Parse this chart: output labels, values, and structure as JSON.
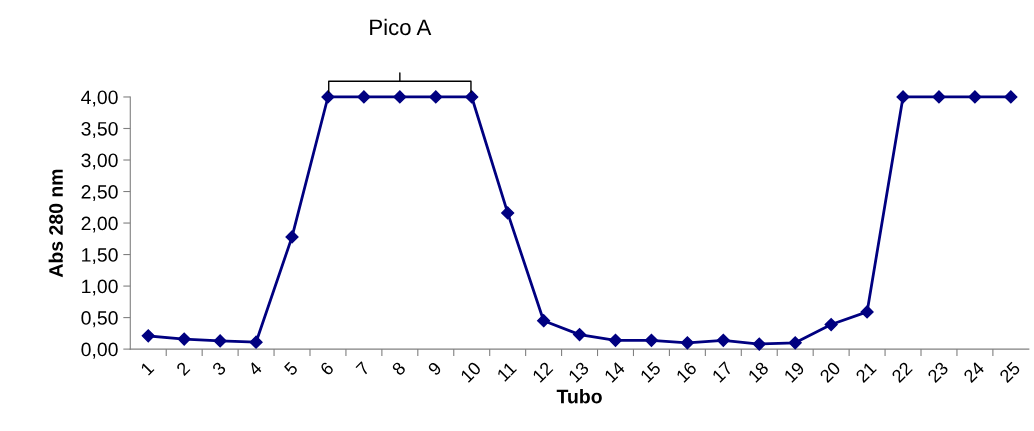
{
  "chart_data": {
    "type": "line",
    "xlabel": "Tubo",
    "ylabel": "Abs 280 nm",
    "categories": [
      "1",
      "2",
      "3",
      "4",
      "5",
      "6",
      "7",
      "8",
      "9",
      "10",
      "11",
      "12",
      "13",
      "14",
      "15",
      "16",
      "17",
      "18",
      "19",
      "20",
      "21",
      "22",
      "23",
      "24",
      "25"
    ],
    "series": [
      {
        "color": "#000080",
        "values": [
          0.21,
          0.16,
          0.13,
          0.11,
          1.78,
          4,
          4,
          4,
          4,
          4,
          2.16,
          0.45,
          0.23,
          0.14,
          0.14,
          0.1,
          0.14,
          0.08,
          0.1,
          0.39,
          0.59,
          4,
          4,
          4,
          4
        ]
      }
    ],
    "ylim": [
      0,
      4
    ],
    "yticks": [
      {
        "value": 0,
        "label": "0,00"
      },
      {
        "value": 0.5,
        "label": "0,50"
      },
      {
        "value": 1,
        "label": "1,00"
      },
      {
        "value": 1.5,
        "label": "1,50"
      },
      {
        "value": 2,
        "label": "2,00"
      },
      {
        "value": 2.5,
        "label": "2,50"
      },
      {
        "value": 3,
        "label": "3,00"
      },
      {
        "value": 3.5,
        "label": "3,50"
      },
      {
        "value": 4,
        "label": "4,00"
      }
    ],
    "annotations": [
      {
        "text": "Pico A",
        "x": "8",
        "y": 4
      }
    ],
    "grid": false,
    "legend": false,
    "marker": "diamond",
    "line_style": "solid"
  }
}
